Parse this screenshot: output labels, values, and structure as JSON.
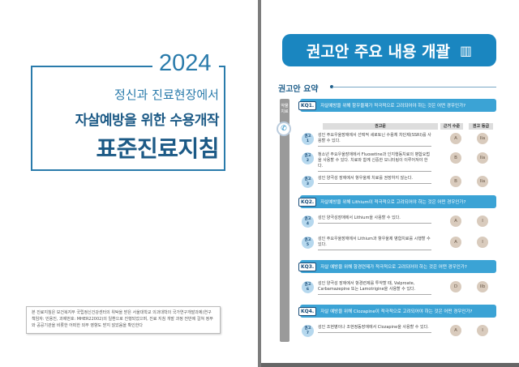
{
  "cover": {
    "year": "2024",
    "subtitle": "정신과 진료현장에서",
    "title_line1": "자살예방을 위한 수용개작",
    "title_line2": "표준진료지침",
    "note": "본 진료지침은 보건복지부 국립정신건강센터의 위탁을 받은 서울대학교 의과대학의 국가연구개발과제(연구책임자: 민용진, 과제번호: MHER22002)의 일환으로 진행되었으며, 진료 지침 개발 과정 전반에 걸쳐 정부와 공공기관을 비롯한 어떠한 외부 영향도 받지 않았음을 확인한다"
  },
  "summary": {
    "banner_title": "권고안 주요 내용 개괄",
    "section_title": "권고안 요약",
    "side_label": "약물 치료",
    "headers": {
      "text": "권고문",
      "evidence": "근거 수준",
      "grade": "권고 등급"
    },
    "key_questions": [
      {
        "tag": "KQ1.",
        "text": "자살예방을 위해 항우울제가 적극적으로 고려되어야 하는 것은 어떤 경우인가?"
      },
      {
        "tag": "KQ2.",
        "text": "자살예방을 위해 Lithium이 적극적으로 고려되어야 하는 것은 어떤 경우인가?"
      },
      {
        "tag": "KQ3.",
        "text": "자살 예방을 위해 항경련제가 적극적으로 고려되어야 하는 것은 어떤 경우인가?"
      },
      {
        "tag": "KQ4.",
        "text": "자살 예방을 위해 Clozapine이 적극적으로 고려되어야 하는 것은 어떤 경우인가?"
      }
    ],
    "recommendations": [
      {
        "label": "권고",
        "num": "1",
        "text": "성인 주요우울장애에서 선택적 세로토닌 수용체 차단제(SSRI)를 사용할 수 있다.",
        "evidence": "A",
        "grade": "IIa"
      },
      {
        "label": "권고",
        "num": "2",
        "text": "청소년 주요우울장애에서 Fluoxetine과 인지행동치료의 병합요법을 사용할 수 있다. 치료와 함께 신중한 모니터링이 이루어져야 한다.",
        "evidence": "B",
        "grade": "IIa"
      },
      {
        "label": "권고",
        "num": "3",
        "text": "성인 양극성 장애에서 항우울제 치료를 권장하지 않는다.",
        "evidence": "B",
        "grade": "IIa"
      },
      {
        "label": "권고",
        "num": "4",
        "text": "성인 양극성장애에서 Lithium을 사용할 수 있다.",
        "evidence": "A",
        "grade": "I"
      },
      {
        "label": "권고",
        "num": "5",
        "text": "성인 주요우울장애에서 Lithium과 항우울제 병합치료를 시행할 수 있다.",
        "evidence": "A",
        "grade": "I"
      },
      {
        "label": "권고",
        "num": "6",
        "text": "성인 양극성 장애에서 항경련제를 투약할 때, Valproate, Carbamazepine 또는 Lamotrigine을 사용할 수 있다.",
        "evidence": "D",
        "grade": "IIb"
      },
      {
        "label": "권고",
        "num": "7",
        "text": "성인 조현병이나 조현정동장애에서 Clozapine을 사용할 수 있다.",
        "evidence": "A",
        "grade": "I"
      }
    ]
  }
}
